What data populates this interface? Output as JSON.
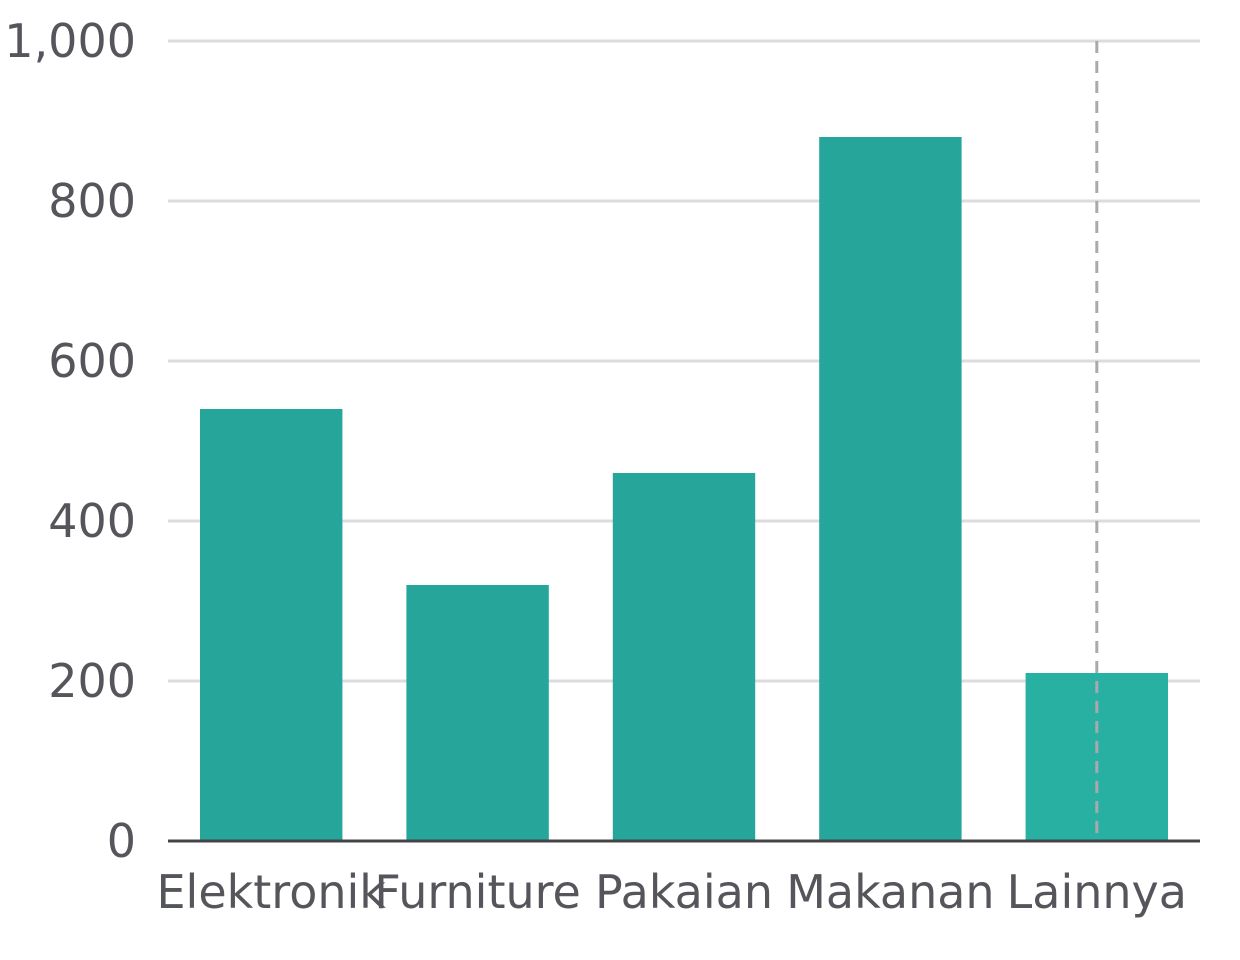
{
  "chart_data": {
    "type": "bar",
    "categories": [
      "Elektronik",
      "Furniture",
      "Pakaian",
      "Makanan",
      "Lainnya"
    ],
    "values": [
      540,
      320,
      460,
      880,
      210
    ],
    "ylim": [
      0,
      1000
    ],
    "yticks": [
      0,
      200,
      400,
      600,
      800,
      1000
    ],
    "ytick_labels": [
      "0",
      "200",
      "400",
      "600",
      "800",
      "1,000"
    ],
    "grid": true,
    "legend": "none",
    "title": "",
    "xlabel": "",
    "ylabel": "",
    "colors": {
      "bar": "#26a69a",
      "bar_highlight": "#28b0a3",
      "grid": "#dcdce0",
      "axis": "#444448",
      "text": "#55555c",
      "cursor": "#aaaaaa"
    },
    "hover_category": "Lainnya"
  }
}
